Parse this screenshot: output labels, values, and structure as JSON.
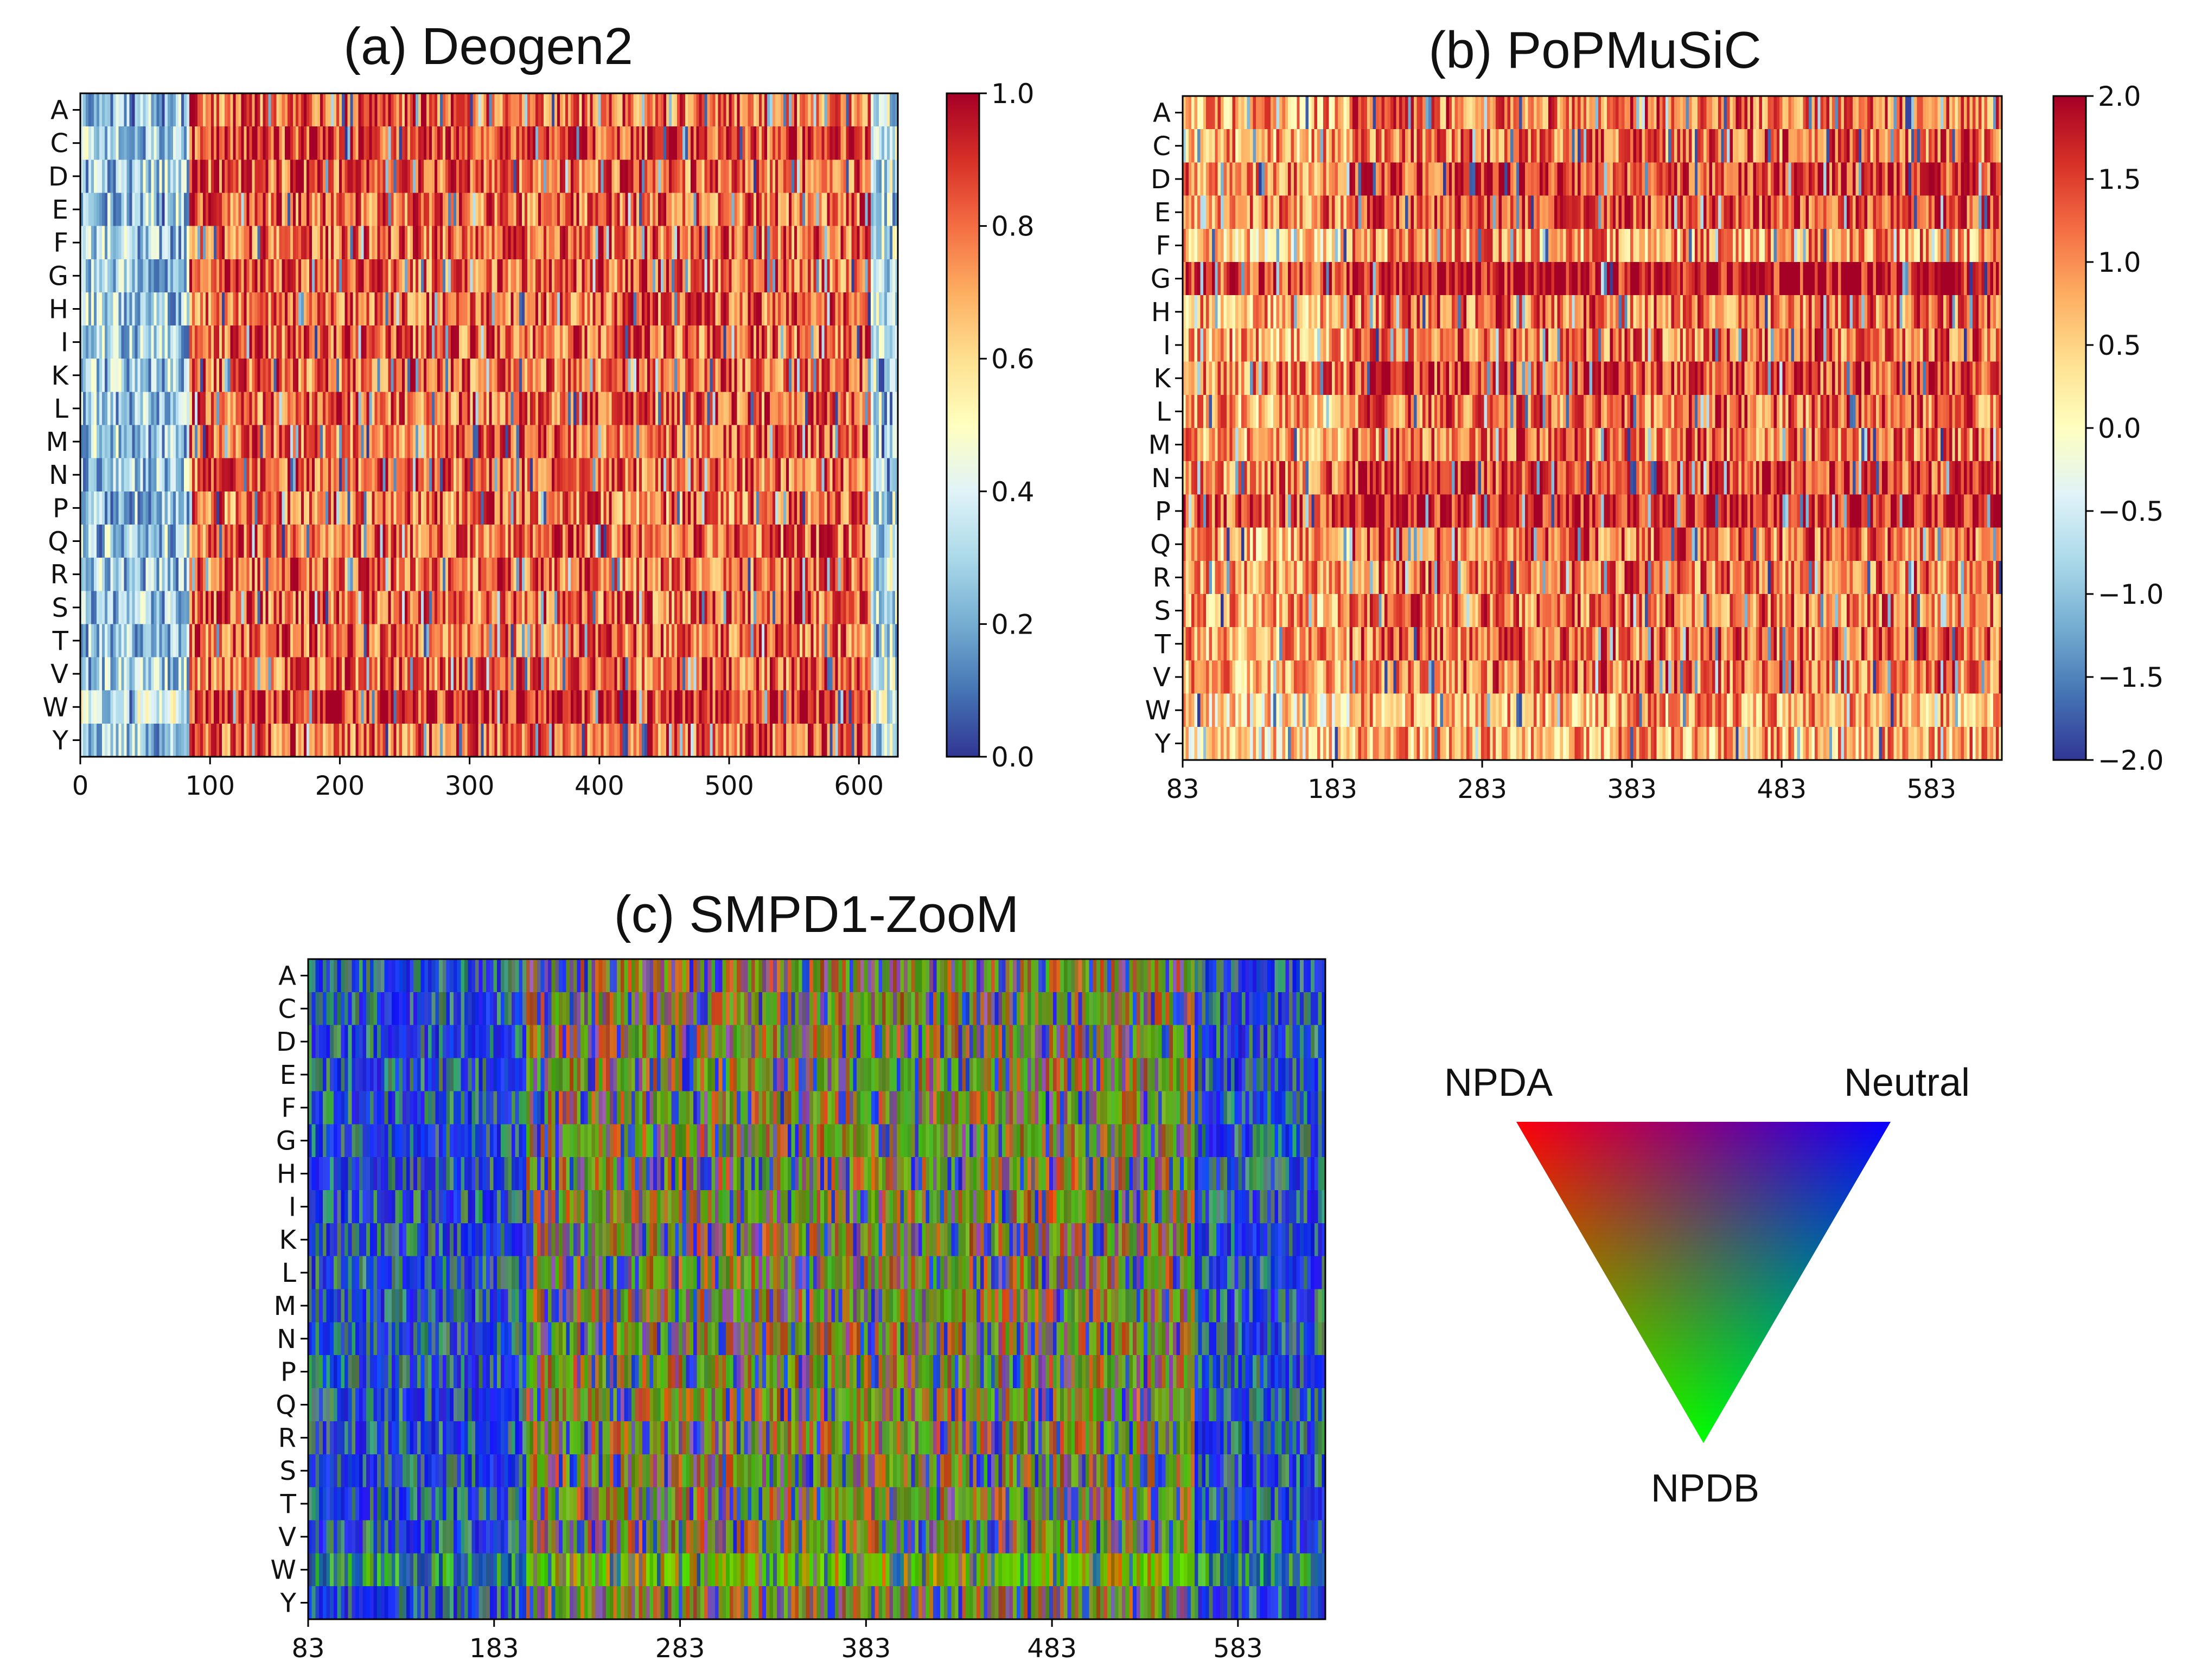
{
  "chart_data": [
    {
      "id": "a",
      "type": "heatmap",
      "title": "(a) Deogen2",
      "y_categories": [
        "A",
        "C",
        "D",
        "E",
        "F",
        "G",
        "H",
        "I",
        "K",
        "L",
        "M",
        "N",
        "P",
        "Q",
        "R",
        "S",
        "T",
        "V",
        "W",
        "Y"
      ],
      "x_range": [
        0,
        630
      ],
      "x_ticks": [
        "0",
        "100",
        "200",
        "300",
        "400",
        "500",
        "600"
      ],
      "colormap": "RdYlBu_r",
      "colorbar": {
        "range": [
          0.0,
          1.0
        ],
        "ticks": [
          "0.0",
          "0.2",
          "0.4",
          "0.6",
          "0.8",
          "1.0"
        ]
      },
      "columns": 300,
      "regions": [
        {
          "x_from": 0,
          "x_to": 85,
          "mean": 0.28
        },
        {
          "x_from": 85,
          "x_to": 610,
          "mean": 0.82
        },
        {
          "x_from": 610,
          "x_to": 630,
          "mean": 0.35
        }
      ],
      "row_bias": {
        "C": 0.05,
        "W": 0.08,
        "P": -0.03
      }
    },
    {
      "id": "b",
      "type": "heatmap",
      "title": "(b) PoPMuSiC",
      "y_categories": [
        "A",
        "C",
        "D",
        "E",
        "F",
        "G",
        "H",
        "I",
        "K",
        "L",
        "M",
        "N",
        "P",
        "Q",
        "R",
        "S",
        "T",
        "V",
        "W",
        "Y"
      ],
      "x_range": [
        83,
        630
      ],
      "x_ticks": [
        "83",
        "183",
        "283",
        "383",
        "483",
        "583"
      ],
      "colormap": "RdYlBu_r",
      "colorbar": {
        "range": [
          -2.0,
          2.0
        ],
        "ticks": [
          "−2.0",
          "−1.5",
          "−1.0",
          "−0.5",
          "0.0",
          "0.5",
          "1.0",
          "1.5",
          "2.0"
        ]
      },
      "columns": 280,
      "regions": [
        {
          "x_from": 83,
          "x_to": 195,
          "mean": 0.8
        },
        {
          "x_from": 195,
          "x_to": 630,
          "mean": 1.2
        }
      ],
      "row_bias": {
        "G": 0.7,
        "P": 0.6,
        "D": 0.3,
        "E": 0.3,
        "K": 0.3,
        "N": 0.3,
        "F": -0.3,
        "W": -0.4,
        "Y": -0.4
      }
    },
    {
      "id": "c",
      "type": "heatmap",
      "title": "(c) SMPD1-ZooM",
      "y_categories": [
        "A",
        "C",
        "D",
        "E",
        "F",
        "G",
        "H",
        "I",
        "K",
        "L",
        "M",
        "N",
        "P",
        "Q",
        "R",
        "S",
        "T",
        "V",
        "W",
        "Y"
      ],
      "x_range": [
        83,
        630
      ],
      "x_ticks": [
        "83",
        "183",
        "283",
        "383",
        "483",
        "583"
      ],
      "colormap": "ternary NPDA-red / NPDB-green / Neutral-blue",
      "columns": 280,
      "regions": [
        {
          "x_from": 83,
          "x_to": 200,
          "class": "mostly Neutral"
        },
        {
          "x_from": 200,
          "x_to": 560,
          "class": "mixed NPDA / NPDB"
        },
        {
          "x_from": 560,
          "x_to": 630,
          "class": "mostly Neutral"
        }
      ]
    }
  ],
  "legend_triangle": {
    "vertex_top_left": "NPDA",
    "vertex_top_right": "Neutral",
    "vertex_bottom": "NPDB",
    "colors": {
      "NPDA": "#ff0000",
      "Neutral": "#0000ff",
      "NPDB": "#00ff00"
    }
  }
}
